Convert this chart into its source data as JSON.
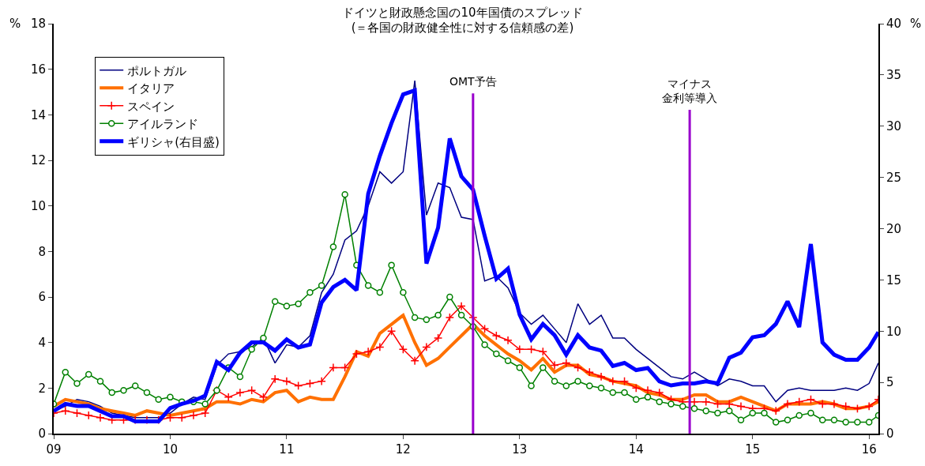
{
  "chart_data": {
    "type": "line",
    "title": "ドイツと財政懸念国の10年国債のスプレッド",
    "subtitle": "(＝各国の財政健全性に対する信頼感の差)",
    "ylabel": "%",
    "y2label": "%",
    "x": [
      2009.0,
      2009.1,
      2009.2,
      2009.3,
      2009.4,
      2009.5,
      2009.6,
      2009.7,
      2009.8,
      2009.9,
      2010.0,
      2010.1,
      2010.2,
      2010.3,
      2010.4,
      2010.5,
      2010.6,
      2010.7,
      2010.8,
      2010.9,
      2011.0,
      2011.1,
      2011.2,
      2011.3,
      2011.4,
      2011.5,
      2011.6,
      2011.7,
      2011.8,
      2011.9,
      2012.0,
      2012.1,
      2012.2,
      2012.3,
      2012.4,
      2012.5,
      2012.6,
      2012.7,
      2012.8,
      2012.9,
      2013.0,
      2013.1,
      2013.2,
      2013.3,
      2013.4,
      2013.5,
      2013.6,
      2013.7,
      2013.8,
      2013.9,
      2014.0,
      2014.1,
      2014.2,
      2014.3,
      2014.4,
      2014.5,
      2014.6,
      2014.7,
      2014.8,
      2014.9,
      2015.0,
      2015.1,
      2015.2,
      2015.3,
      2015.4,
      2015.5,
      2015.6,
      2015.7,
      2015.8,
      2015.9,
      2016.0,
      2016.08
    ],
    "series": [
      {
        "name": "ポルトガル",
        "color": "#000080",
        "marker": "none",
        "values": [
          1.0,
          1.2,
          1.5,
          1.4,
          1.2,
          0.9,
          0.8,
          0.7,
          0.7,
          0.7,
          0.9,
          1.3,
          1.6,
          1.5,
          3.0,
          3.5,
          3.6,
          3.8,
          4.2,
          3.1,
          3.9,
          3.8,
          4.3,
          6.2,
          7.0,
          8.5,
          8.9,
          10.0,
          11.5,
          11.0,
          11.5,
          15.5,
          9.6,
          11.0,
          10.8,
          9.5,
          9.4,
          6.7,
          6.9,
          6.4,
          5.3,
          4.8,
          5.2,
          4.6,
          4.0,
          5.7,
          4.8,
          5.2,
          4.2,
          4.2,
          3.7,
          3.3,
          2.9,
          2.5,
          2.4,
          2.7,
          2.4,
          2.1,
          2.4,
          2.3,
          2.1,
          2.1,
          1.4,
          1.9,
          2.0,
          1.9,
          1.9,
          1.9,
          2.0,
          1.9,
          2.2,
          3.1
        ]
      },
      {
        "name": "イタリア",
        "color": "#ff7000",
        "marker": "none",
        "values": [
          1.2,
          1.5,
          1.4,
          1.3,
          1.1,
          1.0,
          0.9,
          0.8,
          1.0,
          0.9,
          0.8,
          0.9,
          1.0,
          1.1,
          1.4,
          1.4,
          1.3,
          1.5,
          1.4,
          1.8,
          1.9,
          1.4,
          1.6,
          1.5,
          1.5,
          2.5,
          3.6,
          3.4,
          4.4,
          4.8,
          5.2,
          4.0,
          3.0,
          3.3,
          3.8,
          4.3,
          4.8,
          4.3,
          3.9,
          3.5,
          3.2,
          2.8,
          3.3,
          2.7,
          3.0,
          3.0,
          2.6,
          2.5,
          2.3,
          2.2,
          2.1,
          1.8,
          1.7,
          1.5,
          1.5,
          1.7,
          1.7,
          1.4,
          1.4,
          1.6,
          1.4,
          1.2,
          1.0,
          1.3,
          1.3,
          1.3,
          1.4,
          1.3,
          1.1,
          1.1,
          1.2,
          1.4
        ]
      },
      {
        "name": "スペイン",
        "color": "#ff0000",
        "marker": "cross",
        "values": [
          0.9,
          1.0,
          0.9,
          0.8,
          0.7,
          0.6,
          0.6,
          0.6,
          0.6,
          0.6,
          0.7,
          0.7,
          0.8,
          0.9,
          1.9,
          1.6,
          1.8,
          1.9,
          1.6,
          2.4,
          2.3,
          2.1,
          2.2,
          2.3,
          2.9,
          2.9,
          3.5,
          3.6,
          3.8,
          4.5,
          3.7,
          3.2,
          3.8,
          4.2,
          5.1,
          5.6,
          5.1,
          4.6,
          4.3,
          4.1,
          3.7,
          3.7,
          3.6,
          3.0,
          3.1,
          2.9,
          2.7,
          2.5,
          2.3,
          2.3,
          2.0,
          1.9,
          1.8,
          1.5,
          1.4,
          1.4,
          1.4,
          1.3,
          1.3,
          1.2,
          1.1,
          1.1,
          1.0,
          1.3,
          1.4,
          1.5,
          1.3,
          1.3,
          1.2,
          1.1,
          1.2,
          1.5
        ]
      },
      {
        "name": "アイルランド",
        "color": "#008000",
        "marker": "circle",
        "values": [
          1.3,
          2.7,
          2.2,
          2.6,
          2.3,
          1.8,
          1.9,
          2.1,
          1.8,
          1.5,
          1.6,
          1.4,
          1.4,
          1.3,
          1.9,
          2.9,
          2.5,
          3.7,
          4.2,
          5.8,
          5.6,
          5.7,
          6.2,
          6.5,
          8.2,
          10.5,
          7.4,
          6.5,
          6.2,
          7.4,
          6.2,
          5.1,
          5.0,
          5.2,
          6.0,
          5.2,
          4.7,
          3.9,
          3.5,
          3.2,
          2.9,
          2.1,
          2.9,
          2.3,
          2.1,
          2.3,
          2.1,
          2.0,
          1.8,
          1.8,
          1.5,
          1.6,
          1.4,
          1.3,
          1.2,
          1.1,
          1.0,
          0.9,
          1.0,
          0.6,
          0.9,
          0.9,
          0.5,
          0.6,
          0.8,
          0.9,
          0.6,
          0.6,
          0.5,
          0.5,
          0.5,
          0.8
        ]
      },
      {
        "name": "ギリシャ(右目盛)",
        "color": "#0000ff",
        "marker": "none",
        "axis": "y2",
        "values": [
          2.2,
          2.9,
          2.7,
          2.7,
          2.2,
          1.7,
          1.7,
          1.2,
          1.2,
          1.2,
          2.5,
          2.9,
          3.2,
          3.7,
          7.0,
          6.2,
          7.9,
          8.9,
          8.9,
          8.1,
          9.2,
          8.4,
          8.7,
          12.8,
          14.3,
          15.0,
          14.0,
          23.4,
          27.1,
          30.3,
          33.1,
          33.5,
          16.6,
          20.1,
          28.8,
          25.1,
          23.8,
          19.3,
          15.1,
          16.1,
          11.6,
          9.2,
          10.7,
          9.6,
          7.7,
          9.6,
          8.4,
          8.1,
          6.6,
          6.9,
          6.2,
          6.4,
          5.1,
          4.7,
          4.9,
          4.9,
          5.1,
          4.9,
          7.4,
          7.9,
          9.4,
          9.6,
          10.7,
          12.9,
          10.4,
          18.5,
          8.9,
          7.7,
          7.2,
          7.2,
          8.4,
          9.9
        ]
      }
    ],
    "xlim": [
      2009,
      2016.08
    ],
    "xticks": [
      {
        "value": 2009,
        "label": "09"
      },
      {
        "value": 2010,
        "label": "10"
      },
      {
        "value": 2011,
        "label": "11"
      },
      {
        "value": 2012,
        "label": "12"
      },
      {
        "value": 2013,
        "label": "13"
      },
      {
        "value": 2014,
        "label": "14"
      },
      {
        "value": 2015,
        "label": "15"
      },
      {
        "value": 2016,
        "label": "16"
      }
    ],
    "ylim": [
      0,
      18
    ],
    "yticks": [
      0,
      2,
      4,
      6,
      8,
      10,
      12,
      14,
      16,
      18
    ],
    "y2lim": [
      0,
      40
    ],
    "y2ticks": [
      0,
      5,
      10,
      15,
      20,
      25,
      30,
      35,
      40
    ],
    "ref_lines": [
      {
        "axis": "x",
        "value": 2012.6,
        "label": "OMT予告",
        "color": "#9900cc"
      },
      {
        "axis": "x",
        "value": 2014.46,
        "label": [
          "マイナス",
          "金利等導入"
        ],
        "color": "#9900cc"
      }
    ],
    "legend": "top left"
  }
}
